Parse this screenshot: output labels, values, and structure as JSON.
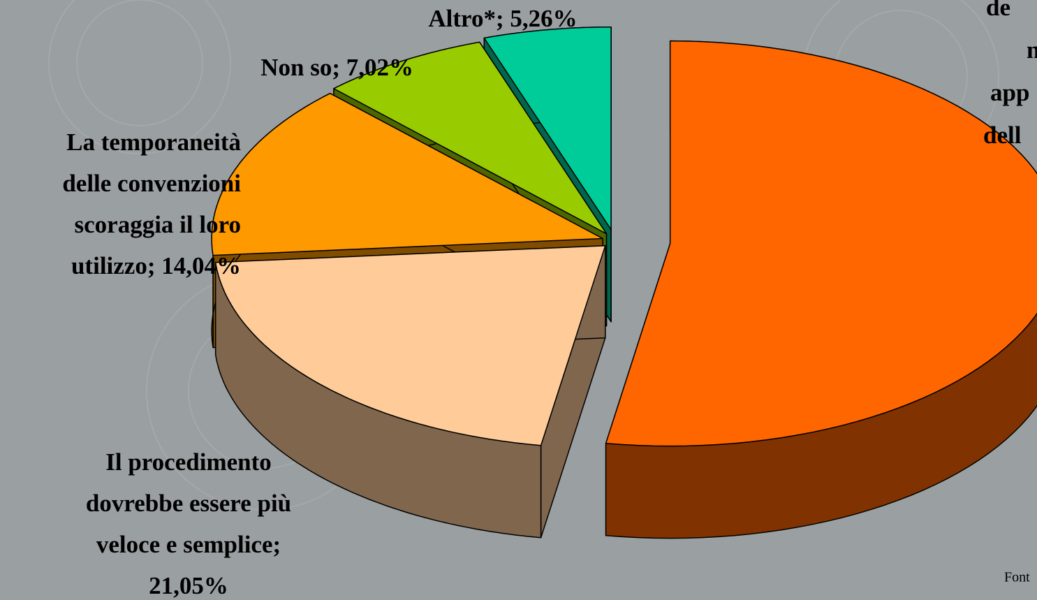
{
  "chart_data": {
    "type": "pie3d",
    "labels": [
      [
        "de",
        "n",
        "app",
        "dell"
      ],
      [
        "Il procedimento",
        "dovrebbe essere più",
        "veloce e semplice;",
        "21,05%"
      ],
      [
        "La temporaneità",
        "delle convenzioni",
        "scoraggia il loro",
        "utilizzo; 14,04%"
      ],
      [
        "Non so; 7,02%"
      ],
      [
        "Altro*; 5,26%"
      ]
    ],
    "values": [
      52.63,
      21.05,
      14.04,
      7.02,
      5.26
    ],
    "colors": [
      "#ff6600",
      "#ffcc99",
      "#ff9900",
      "#99cc00",
      "#00cc99"
    ],
    "source": "Font"
  }
}
